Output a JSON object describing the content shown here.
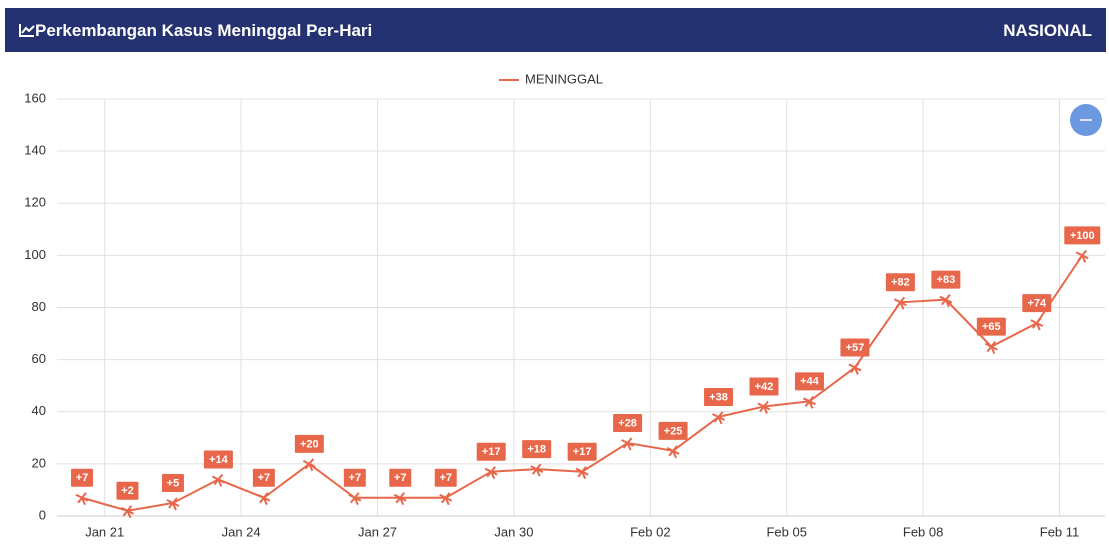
{
  "header": {
    "title": "Perkembangan Kasus Meninggal Per-Hari",
    "badge": "NASIONAL"
  },
  "chart_data": {
    "type": "line",
    "x": [
      -0.5,
      0.5,
      1.5,
      2.5,
      3.5,
      4.5,
      5.5,
      6.5,
      7.5,
      8.5,
      9.5,
      10.5,
      11.5,
      12.5,
      13.5,
      14.5,
      15.5,
      16.5,
      17.5,
      18.5,
      19.5,
      20.5,
      21.5
    ],
    "series": [
      {
        "name": "MENINGGAL",
        "color": "#e8674a",
        "values": [
          7,
          2,
          5,
          14,
          7,
          20,
          7,
          7,
          7,
          17,
          18,
          17,
          28,
          25,
          38,
          42,
          44,
          57,
          82,
          83,
          65,
          74,
          100
        ],
        "value_labels": [
          "+7",
          "+2",
          "+5",
          "+14",
          "+7",
          "+20",
          "+7",
          "+7",
          "+7",
          "+17",
          "+18",
          "+17",
          "+28",
          "+25",
          "+38",
          "+42",
          "+44",
          "+57",
          "+82",
          "+83",
          "+65",
          "+74",
          "+100"
        ]
      }
    ],
    "xlim": [
      -1.05,
      22
    ],
    "xticks": [
      {
        "value": 0,
        "label": "Jan 21"
      },
      {
        "value": 3,
        "label": "Jan 24"
      },
      {
        "value": 6,
        "label": "Jan 27"
      },
      {
        "value": 9,
        "label": "Jan 30"
      },
      {
        "value": 12,
        "label": "Feb 02"
      },
      {
        "value": 15,
        "label": "Feb 05"
      },
      {
        "value": 18,
        "label": "Feb 08"
      },
      {
        "value": 21,
        "label": "Feb 11"
      }
    ],
    "ylim": [
      0,
      160
    ],
    "yticks": [
      0,
      20,
      40,
      60,
      80,
      100,
      120,
      140,
      160
    ],
    "grid": true,
    "legend": "top"
  }
}
